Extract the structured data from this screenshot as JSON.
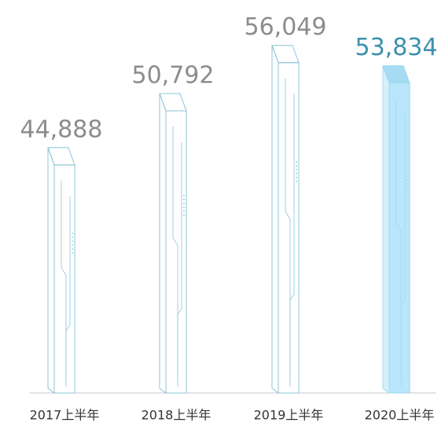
{
  "chart_data": {
    "type": "bar",
    "categories": [
      "2017上半年",
      "2018上半年",
      "2019上半年",
      "2020上半年"
    ],
    "values": [
      44888,
      50792,
      56049,
      53834
    ],
    "value_labels": [
      "44,888",
      "50,792",
      "56,049",
      "53,834"
    ],
    "colors": [
      "none",
      "none",
      "none",
      "#b9e6fa"
    ],
    "stroke_colors": [
      "#8cc4d6",
      "#8cc4d6",
      "#8cc4d6",
      "#9fd8f0"
    ],
    "label_colors": [
      "#8c8c8c",
      "#8c8c8c",
      "#8c8c8c",
      "#3a91ad"
    ],
    "ylim": [
      20000,
      58000
    ]
  }
}
